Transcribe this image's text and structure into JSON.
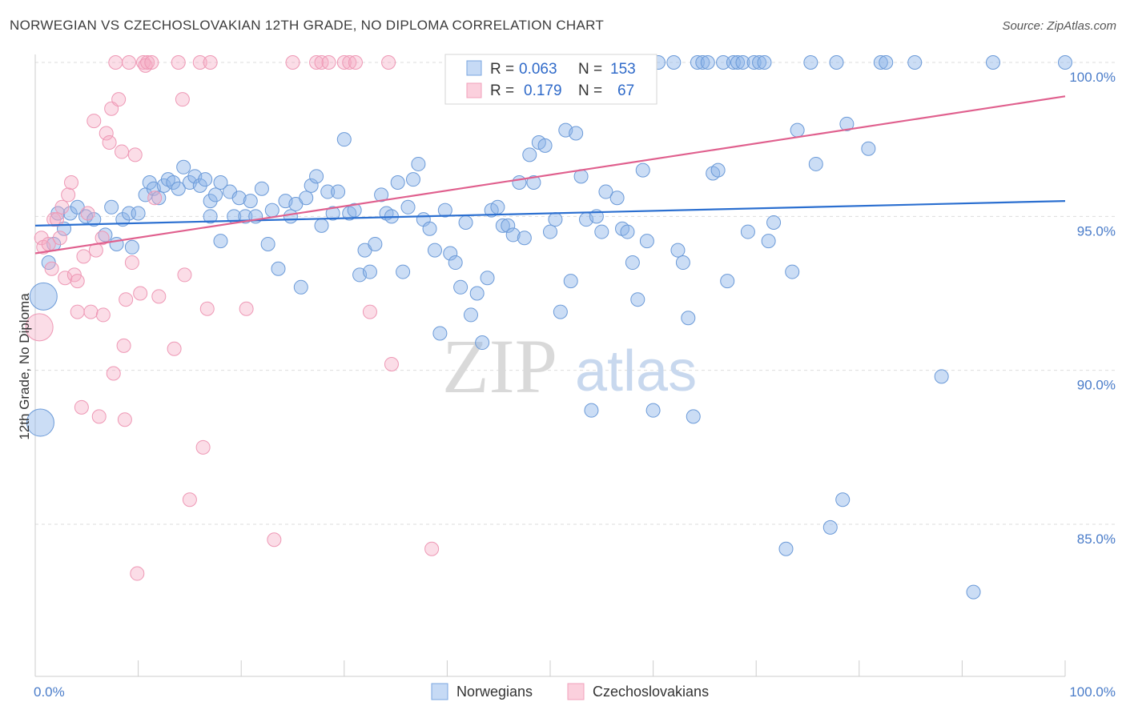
{
  "title": "NORWEGIAN VS CZECHOSLOVAKIAN 12TH GRADE, NO DIPLOMA CORRELATION CHART",
  "source": "Source: ZipAtlas.com",
  "watermark": {
    "part1": "ZIP",
    "part2": "atlas"
  },
  "colors": {
    "blue": "#7aa6e0",
    "blue_line": "#2b6fd0",
    "pink": "#f0a0bb",
    "pink_line": "#e0608e"
  },
  "legend": {
    "r_label": "R =",
    "n_label": "N =",
    "rows": [
      {
        "r": "0.063",
        "n": "153"
      },
      {
        "r": "0.179",
        "n": "67"
      }
    ]
  },
  "chart_data": {
    "type": "scatter",
    "ylabel": "12th Grade, No Diploma",
    "x_tick_labels": [
      "0.0%",
      "100.0%"
    ],
    "y_tick_labels": [
      "100.0%",
      "95.0%",
      "90.0%",
      "85.0%"
    ],
    "xlim": [
      0,
      100
    ],
    "ylim": [
      80.0,
      100.8
    ],
    "grid": "horizontal dashed",
    "legend_position": "top-center",
    "series": [
      {
        "name": "Norwegians",
        "trend": {
          "x0": 0,
          "y0": 94.7,
          "x1": 100,
          "y1": 95.5
        },
        "points": [
          [
            0.8,
            92.4,
            3
          ],
          [
            0.5,
            88.3,
            3
          ],
          [
            1.3,
            93.5,
            1
          ],
          [
            1.8,
            94.1,
            1
          ],
          [
            2.2,
            95.1,
            1
          ],
          [
            2.8,
            94.6,
            1
          ],
          [
            3.4,
            95.1,
            1
          ],
          [
            4.1,
            95.3,
            1
          ],
          [
            4.9,
            95.0,
            1
          ],
          [
            5.7,
            94.9,
            1
          ],
          [
            6.8,
            94.4,
            1
          ],
          [
            7.4,
            95.3,
            1
          ],
          [
            7.9,
            94.1,
            1
          ],
          [
            8.5,
            94.9,
            1
          ],
          [
            9.1,
            95.1,
            1
          ],
          [
            9.4,
            94.0,
            1
          ],
          [
            10.0,
            95.1,
            1
          ],
          [
            10.7,
            95.7,
            1
          ],
          [
            11.1,
            96.1,
            1
          ],
          [
            11.5,
            95.9,
            1
          ],
          [
            12.0,
            95.6,
            1
          ],
          [
            12.5,
            96.0,
            1
          ],
          [
            12.9,
            96.2,
            1
          ],
          [
            13.4,
            96.1,
            1
          ],
          [
            13.9,
            95.9,
            1
          ],
          [
            14.4,
            96.6,
            1
          ],
          [
            15.0,
            96.1,
            1
          ],
          [
            15.5,
            96.3,
            1
          ],
          [
            16.0,
            96.0,
            1
          ],
          [
            16.5,
            96.2,
            1
          ],
          [
            17.0,
            95.5,
            1
          ],
          [
            17.5,
            95.7,
            1
          ],
          [
            18.0,
            96.1,
            1
          ],
          [
            17.0,
            95.0,
            1
          ],
          [
            18.0,
            94.2,
            1
          ],
          [
            18.9,
            95.8,
            1
          ],
          [
            19.3,
            95.0,
            1
          ],
          [
            19.8,
            95.6,
            1
          ],
          [
            20.4,
            95.0,
            1
          ],
          [
            20.9,
            95.5,
            1
          ],
          [
            21.4,
            95.0,
            1
          ],
          [
            22.0,
            95.9,
            1
          ],
          [
            22.6,
            94.1,
            1
          ],
          [
            23.0,
            95.2,
            1
          ],
          [
            23.6,
            93.3,
            1
          ],
          [
            24.3,
            95.5,
            1
          ],
          [
            24.8,
            95.0,
            1
          ],
          [
            25.3,
            95.4,
            1
          ],
          [
            25.8,
            92.7,
            1
          ],
          [
            26.3,
            95.6,
            1
          ],
          [
            26.8,
            96.0,
            1
          ],
          [
            27.3,
            96.3,
            1
          ],
          [
            27.8,
            94.7,
            1
          ],
          [
            28.4,
            95.8,
            1
          ],
          [
            28.9,
            95.1,
            1
          ],
          [
            29.4,
            95.8,
            1
          ],
          [
            30.0,
            97.5,
            1
          ],
          [
            30.5,
            95.1,
            1
          ],
          [
            31.0,
            95.2,
            1
          ],
          [
            31.5,
            93.1,
            1
          ],
          [
            32.0,
            93.9,
            1
          ],
          [
            32.5,
            93.2,
            1
          ],
          [
            33.0,
            94.1,
            1
          ],
          [
            33.6,
            95.7,
            1
          ],
          [
            34.1,
            95.1,
            1
          ],
          [
            34.6,
            95.0,
            1
          ],
          [
            35.2,
            96.1,
            1
          ],
          [
            35.7,
            93.2,
            1
          ],
          [
            36.2,
            95.3,
            1
          ],
          [
            36.7,
            96.2,
            1
          ],
          [
            37.2,
            96.7,
            1
          ],
          [
            37.7,
            94.9,
            1
          ],
          [
            38.3,
            94.6,
            1
          ],
          [
            38.8,
            93.9,
            1
          ],
          [
            39.3,
            91.2,
            1
          ],
          [
            39.8,
            95.2,
            1
          ],
          [
            40.3,
            93.8,
            1
          ],
          [
            40.8,
            93.5,
            1
          ],
          [
            41.3,
            92.7,
            1
          ],
          [
            41.8,
            94.8,
            1
          ],
          [
            42.3,
            91.8,
            1
          ],
          [
            42.9,
            92.5,
            1
          ],
          [
            43.4,
            90.9,
            1
          ],
          [
            43.9,
            93.0,
            1
          ],
          [
            44.3,
            95.2,
            1
          ],
          [
            44.9,
            95.3,
            1
          ],
          [
            45.4,
            94.7,
            1
          ],
          [
            45.9,
            94.7,
            1
          ],
          [
            46.4,
            94.4,
            1
          ],
          [
            47.0,
            96.1,
            1
          ],
          [
            47.5,
            94.3,
            1
          ],
          [
            48.0,
            97.0,
            1
          ],
          [
            48.4,
            96.1,
            1
          ],
          [
            48.9,
            97.4,
            1
          ],
          [
            49.5,
            97.3,
            1
          ],
          [
            50.0,
            94.5,
            1
          ],
          [
            50.5,
            94.9,
            1
          ],
          [
            51.0,
            91.9,
            1
          ],
          [
            51.5,
            97.8,
            1
          ],
          [
            52.0,
            92.9,
            1
          ],
          [
            52.5,
            97.7,
            1
          ],
          [
            53.0,
            96.3,
            1
          ],
          [
            53.5,
            94.9,
            1
          ],
          [
            54.0,
            88.7,
            1
          ],
          [
            54.5,
            95.0,
            1
          ],
          [
            55.0,
            94.5,
            1
          ],
          [
            55.4,
            95.8,
            1
          ],
          [
            56.5,
            95.6,
            1
          ],
          [
            57.0,
            94.6,
            1
          ],
          [
            57.5,
            94.5,
            1
          ],
          [
            58.0,
            93.5,
            1
          ],
          [
            58.5,
            92.3,
            1
          ],
          [
            59.0,
            96.5,
            1
          ],
          [
            59.4,
            94.2,
            1
          ],
          [
            60.0,
            88.7,
            1
          ],
          [
            60.5,
            100.0,
            1
          ],
          [
            62.0,
            100.0,
            1
          ],
          [
            62.4,
            93.9,
            1
          ],
          [
            62.9,
            93.5,
            1
          ],
          [
            63.4,
            91.7,
            1
          ],
          [
            63.9,
            88.5,
            1
          ],
          [
            64.3,
            100.0,
            1
          ],
          [
            64.8,
            100.0,
            1
          ],
          [
            65.3,
            100.0,
            1
          ],
          [
            65.8,
            96.4,
            1
          ],
          [
            66.3,
            96.5,
            1
          ],
          [
            66.8,
            100.0,
            1
          ],
          [
            67.2,
            92.9,
            1
          ],
          [
            67.8,
            100.0,
            1
          ],
          [
            68.2,
            100.0,
            1
          ],
          [
            68.7,
            100.0,
            1
          ],
          [
            69.2,
            94.5,
            1
          ],
          [
            69.8,
            100.0,
            1
          ],
          [
            70.3,
            100.0,
            1
          ],
          [
            70.8,
            100.0,
            1
          ],
          [
            71.2,
            94.2,
            1
          ],
          [
            71.7,
            94.8,
            1
          ],
          [
            72.9,
            84.2,
            1
          ],
          [
            73.5,
            93.2,
            1
          ],
          [
            74.0,
            97.8,
            1
          ],
          [
            75.3,
            100.0,
            1
          ],
          [
            75.8,
            96.7,
            1
          ],
          [
            77.8,
            100.0,
            1
          ],
          [
            77.2,
            84.9,
            1
          ],
          [
            78.4,
            85.8,
            1
          ],
          [
            78.8,
            98.0,
            1
          ],
          [
            80.9,
            97.2,
            1
          ],
          [
            82.1,
            100.0,
            1
          ],
          [
            82.6,
            100.0,
            1
          ],
          [
            85.4,
            100.0,
            1
          ],
          [
            88.0,
            89.8,
            1
          ],
          [
            91.1,
            82.8,
            1
          ],
          [
            93.0,
            100.0,
            1
          ],
          [
            100.0,
            100.0,
            1
          ]
        ]
      },
      {
        "name": "Czechoslovakians",
        "trend": {
          "x0": 0,
          "y0": 93.8,
          "x1": 100,
          "y1": 98.9
        },
        "points": [
          [
            0.4,
            91.4,
            3
          ],
          [
            0.6,
            94.3,
            1
          ],
          [
            0.8,
            94.0,
            1
          ],
          [
            1.3,
            94.1,
            1
          ],
          [
            1.6,
            93.3,
            1
          ],
          [
            1.8,
            94.9,
            1
          ],
          [
            2.1,
            94.9,
            1
          ],
          [
            2.4,
            94.3,
            1
          ],
          [
            2.6,
            95.3,
            1
          ],
          [
            2.9,
            93.0,
            1
          ],
          [
            3.2,
            95.7,
            1
          ],
          [
            3.5,
            96.1,
            1
          ],
          [
            3.8,
            93.1,
            1
          ],
          [
            4.1,
            91.9,
            1
          ],
          [
            4.1,
            92.9,
            1
          ],
          [
            4.5,
            88.8,
            1
          ],
          [
            4.7,
            93.7,
            1
          ],
          [
            5.1,
            95.1,
            1
          ],
          [
            5.4,
            91.9,
            1
          ],
          [
            5.7,
            98.1,
            1
          ],
          [
            5.9,
            93.9,
            1
          ],
          [
            6.2,
            88.5,
            1
          ],
          [
            6.5,
            94.3,
            1
          ],
          [
            6.6,
            91.8,
            1
          ],
          [
            6.9,
            97.7,
            1
          ],
          [
            7.2,
            97.4,
            1
          ],
          [
            7.4,
            98.5,
            1
          ],
          [
            7.6,
            89.9,
            1
          ],
          [
            7.8,
            100.0,
            1
          ],
          [
            8.1,
            98.8,
            1
          ],
          [
            8.4,
            97.1,
            1
          ],
          [
            8.6,
            90.8,
            1
          ],
          [
            8.7,
            88.4,
            1
          ],
          [
            8.8,
            92.3,
            1
          ],
          [
            9.1,
            100.0,
            1
          ],
          [
            9.4,
            93.5,
            1
          ],
          [
            9.7,
            97.0,
            1
          ],
          [
            9.9,
            83.4,
            1
          ],
          [
            10.2,
            92.5,
            1
          ],
          [
            10.5,
            100.0,
            1
          ],
          [
            10.7,
            99.9,
            1
          ],
          [
            10.9,
            100.0,
            1
          ],
          [
            11.3,
            100.0,
            1
          ],
          [
            11.6,
            95.6,
            1
          ],
          [
            12.0,
            92.4,
            1
          ],
          [
            13.5,
            90.7,
            1
          ],
          [
            13.9,
            100.0,
            1
          ],
          [
            14.3,
            98.8,
            1
          ],
          [
            14.5,
            93.1,
            1
          ],
          [
            15.0,
            85.8,
            1
          ],
          [
            16.0,
            100.0,
            1
          ],
          [
            16.3,
            87.5,
            1
          ],
          [
            16.7,
            92.0,
            1
          ],
          [
            17.0,
            100.0,
            1
          ],
          [
            20.5,
            92.0,
            1
          ],
          [
            23.2,
            84.5,
            1
          ],
          [
            25.0,
            100.0,
            1
          ],
          [
            27.3,
            100.0,
            1
          ],
          [
            27.8,
            100.0,
            1
          ],
          [
            28.5,
            100.0,
            1
          ],
          [
            30.0,
            100.0,
            1
          ],
          [
            30.5,
            100.0,
            1
          ],
          [
            31.1,
            100.0,
            1
          ],
          [
            32.5,
            91.9,
            1
          ],
          [
            34.3,
            100.0,
            1
          ],
          [
            34.6,
            90.2,
            1
          ],
          [
            38.5,
            84.2,
            1
          ]
        ]
      }
    ]
  }
}
